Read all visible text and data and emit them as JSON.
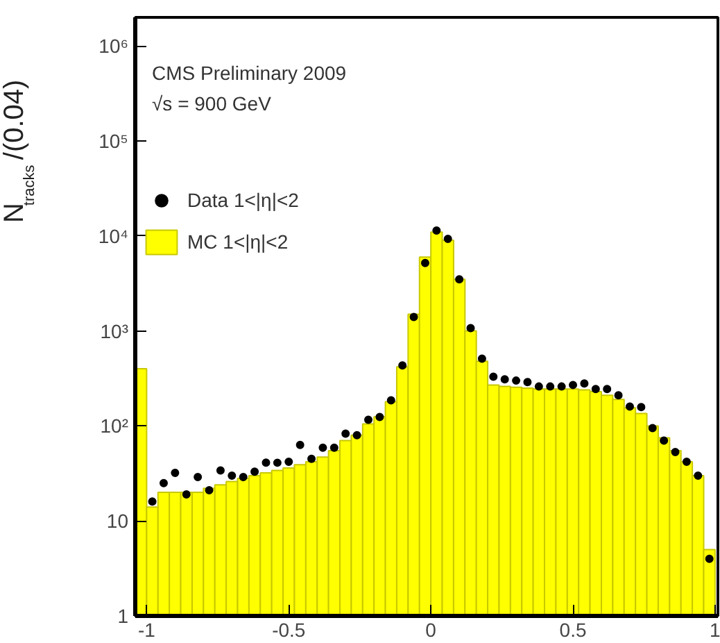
{
  "chart_data": {
    "type": "histogram",
    "ylabel": "N$_{tracks}$/(0.04)",
    "annotations": [
      "CMS Preliminary 2009",
      "√s = 900 GeV"
    ],
    "bins": [
      -1.04,
      -1.0,
      -0.96,
      -0.92,
      -0.88,
      -0.84,
      -0.8,
      -0.76,
      -0.72,
      -0.68,
      -0.64,
      -0.6,
      -0.56,
      -0.52,
      -0.48,
      -0.44,
      -0.4,
      -0.36,
      -0.32,
      -0.28,
      -0.24,
      -0.2,
      -0.16,
      -0.12,
      -0.08,
      -0.04,
      0.0,
      0.04,
      0.08,
      0.12,
      0.16,
      0.2,
      0.24,
      0.28,
      0.32,
      0.36,
      0.4,
      0.44,
      0.48,
      0.52,
      0.56,
      0.6,
      0.64,
      0.68,
      0.72,
      0.76,
      0.8,
      0.84,
      0.88,
      0.92,
      0.96,
      1.0
    ],
    "series": [
      {
        "name": "Data 1<|η|<2",
        "type": "scatter",
        "color": "#000000",
        "x": [
          -0.98,
          -0.94,
          -0.9,
          -0.86,
          -0.82,
          -0.78,
          -0.74,
          -0.7,
          -0.66,
          -0.62,
          -0.58,
          -0.54,
          -0.5,
          -0.46,
          -0.42,
          -0.38,
          -0.34,
          -0.3,
          -0.26,
          -0.22,
          -0.18,
          -0.14,
          -0.1,
          -0.06,
          -0.02,
          0.02,
          0.06,
          0.1,
          0.14,
          0.18,
          0.22,
          0.26,
          0.3,
          0.34,
          0.38,
          0.42,
          0.46,
          0.5,
          0.54,
          0.58,
          0.62,
          0.66,
          0.7,
          0.74,
          0.78,
          0.82,
          0.86,
          0.9,
          0.94,
          0.98
        ],
        "values": [
          16,
          25,
          32,
          19,
          29,
          21,
          34,
          30,
          29,
          33,
          41,
          41,
          42,
          63,
          45,
          59,
          59,
          83,
          80,
          116,
          124,
          186,
          433,
          1400,
          5200,
          11400,
          9300,
          3500,
          1070,
          510,
          330,
          310,
          300,
          290,
          260,
          260,
          260,
          270,
          280,
          245,
          245,
          210,
          160,
          158,
          95,
          70,
          53,
          42,
          30,
          4
        ]
      },
      {
        "name": "MC 1<|η|<2",
        "color": "#ffff00",
        "values": [
          400,
          14,
          20,
          20,
          20,
          20,
          22,
          24,
          26,
          28,
          30,
          32,
          34,
          36,
          39,
          42,
          47,
          55,
          70,
          80,
          105,
          125,
          180,
          420,
          1500,
          6000,
          11000,
          9000,
          3500,
          1000,
          480,
          270,
          260,
          255,
          250,
          245,
          245,
          245,
          245,
          240,
          230,
          210,
          190,
          155,
          135,
          100,
          75,
          55,
          42,
          30,
          5
        ]
      }
    ],
    "xlim": [
      -1.04,
      1.01
    ],
    "xticks": [
      -1,
      -0.5,
      0,
      0.5,
      1
    ],
    "ylim": [
      1,
      2000000
    ],
    "yticks": [
      1,
      10,
      {
        "value": 100,
        "label": "10²"
      },
      {
        "value": 1000,
        "label": "10³"
      },
      {
        "value": 10000,
        "label": "10⁴"
      },
      {
        "value": 100000,
        "label": "10⁵"
      },
      {
        "value": 1000000,
        "label": "10⁶"
      }
    ],
    "log": "y",
    "grid": false,
    "legend": "top left",
    "marker": "circle"
  }
}
